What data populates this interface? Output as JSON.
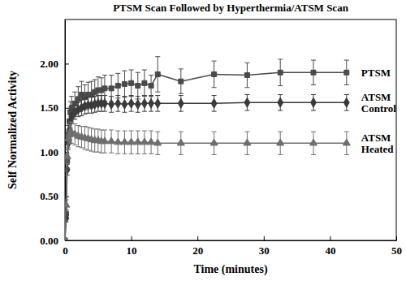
{
  "chart_data": {
    "type": "line",
    "title": "PTSM Scan Followed by Hyperthermia/ATSM Scan",
    "x_label": "Time (minutes)",
    "y_label": "Self Normalized Activity",
    "x": [
      0,
      0.17,
      0.33,
      0.5,
      0.67,
      0.83,
      1,
      1.5,
      2,
      2.5,
      3,
      3.5,
      4,
      4.5,
      5,
      5.5,
      6,
      7,
      8,
      9,
      10,
      11,
      12,
      13,
      14,
      17.5,
      22.5,
      27.5,
      32.5,
      37.5,
      42.5
    ],
    "series": [
      {
        "name": "PTSM",
        "color": "#4a4a4a",
        "marker": "square",
        "values": [
          0,
          0.3,
          0.9,
          1.2,
          1.35,
          1.45,
          1.5,
          1.55,
          1.6,
          1.65,
          1.62,
          1.65,
          1.65,
          1.68,
          1.7,
          1.7,
          1.72,
          1.72,
          1.75,
          1.77,
          1.78,
          1.75,
          1.78,
          1.75,
          1.88,
          1.8,
          1.88,
          1.87,
          1.9,
          1.9,
          1.9
        ],
        "errors": [
          0,
          0.05,
          0.08,
          0.1,
          0.12,
          0.12,
          0.13,
          0.13,
          0.14,
          0.15,
          0.14,
          0.14,
          0.15,
          0.14,
          0.15,
          0.14,
          0.15,
          0.15,
          0.14,
          0.15,
          0.15,
          0.15,
          0.15,
          0.12,
          0.2,
          0.14,
          0.15,
          0.14,
          0.15,
          0.14,
          0.14
        ]
      },
      {
        "name": "ATSM Control",
        "color": "#3a3a3a",
        "marker": "diamond",
        "values": [
          0,
          0.25,
          0.8,
          1.1,
          1.25,
          1.35,
          1.4,
          1.45,
          1.48,
          1.5,
          1.52,
          1.53,
          1.53,
          1.54,
          1.55,
          1.55,
          1.55,
          1.54,
          1.55,
          1.54,
          1.55,
          1.54,
          1.55,
          1.55,
          1.55,
          1.55,
          1.55,
          1.56,
          1.56,
          1.56,
          1.56
        ],
        "errors": [
          0,
          0.04,
          0.06,
          0.07,
          0.08,
          0.08,
          0.08,
          0.08,
          0.08,
          0.09,
          0.09,
          0.09,
          0.09,
          0.09,
          0.09,
          0.09,
          0.09,
          0.09,
          0.09,
          0.09,
          0.09,
          0.09,
          0.09,
          0.09,
          0.09,
          0.09,
          0.09,
          0.09,
          0.09,
          0.09,
          0.09
        ]
      },
      {
        "name": "ATSM Heated",
        "color": "#6e6e6e",
        "marker": "triangle",
        "values": [
          0,
          0.4,
          0.95,
          1.15,
          1.2,
          1.22,
          1.22,
          1.2,
          1.18,
          1.17,
          1.16,
          1.15,
          1.14,
          1.13,
          1.13,
          1.12,
          1.12,
          1.12,
          1.11,
          1.11,
          1.11,
          1.11,
          1.11,
          1.11,
          1.1,
          1.1,
          1.1,
          1.1,
          1.1,
          1.1,
          1.1
        ],
        "errors": [
          0,
          0.06,
          0.08,
          0.1,
          0.11,
          0.12,
          0.12,
          0.12,
          0.12,
          0.12,
          0.13,
          0.13,
          0.13,
          0.13,
          0.13,
          0.13,
          0.13,
          0.13,
          0.13,
          0.13,
          0.13,
          0.13,
          0.13,
          0.13,
          0.13,
          0.13,
          0.13,
          0.13,
          0.13,
          0.13,
          0.13
        ]
      }
    ],
    "xlim": [
      0,
      50
    ],
    "xticks": [
      0,
      10,
      20,
      30,
      40,
      50
    ],
    "ylim": [
      0,
      2.5
    ],
    "yticks": [
      {
        "value": 0,
        "label": "0.00"
      },
      {
        "value": 0.5,
        "label": "0.50"
      },
      {
        "value": 1,
        "label": "1.00"
      },
      {
        "value": 1.5,
        "label": "1.50"
      },
      {
        "value": 2,
        "label": "2.00"
      }
    ],
    "grid": false
  }
}
